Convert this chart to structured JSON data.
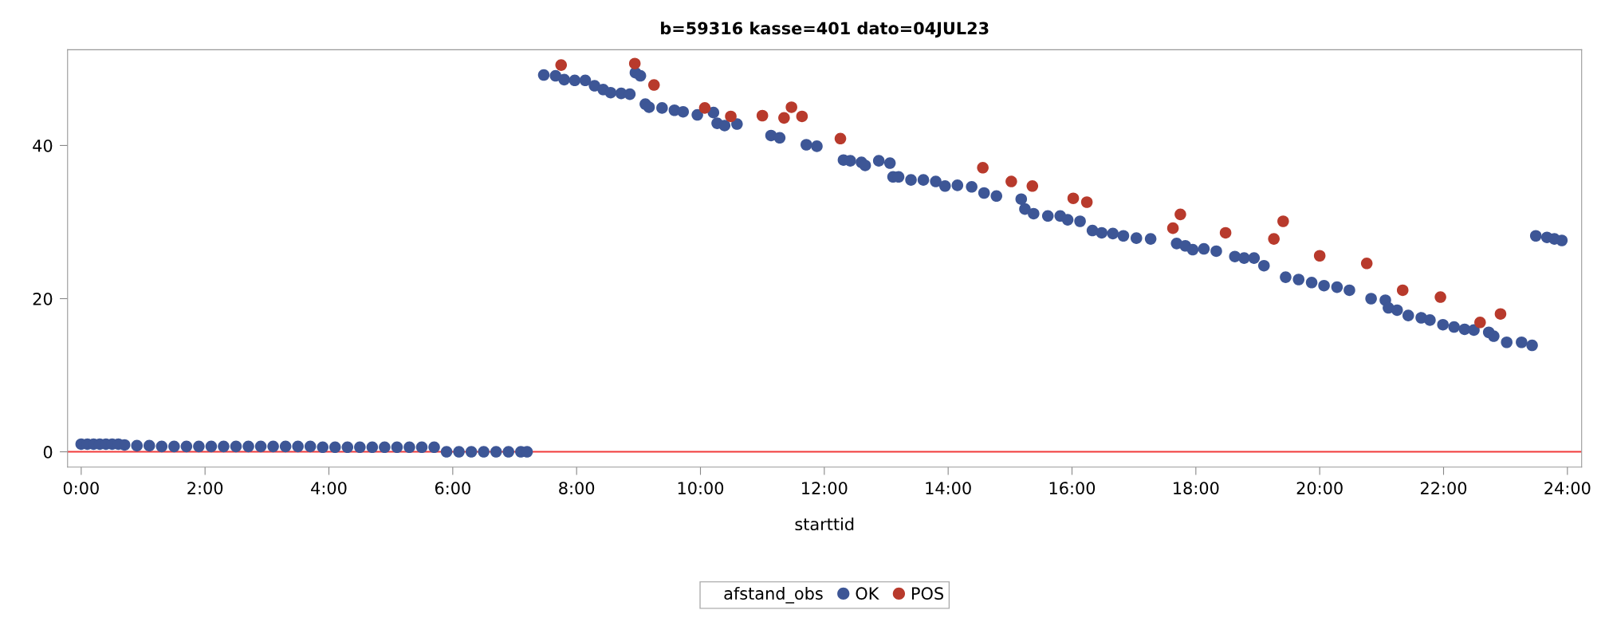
{
  "chart_data": {
    "type": "scatter",
    "title": "b=59316 kasse=401 dato=04JUL23",
    "xlabel": "starttid",
    "legend_title": "afstand_obs",
    "legend": "bottom",
    "grid": false,
    "marker": "circle",
    "xlim": [
      -0.22,
      24.23
    ],
    "ylim": [
      -2,
      52.5
    ],
    "xticks": [
      {
        "value": 0,
        "label": "0:00"
      },
      {
        "value": 2,
        "label": "2:00"
      },
      {
        "value": 4,
        "label": "4:00"
      },
      {
        "value": 6,
        "label": "6:00"
      },
      {
        "value": 8,
        "label": "8:00"
      },
      {
        "value": 10,
        "label": "10:00"
      },
      {
        "value": 12,
        "label": "12:00"
      },
      {
        "value": 14,
        "label": "14:00"
      },
      {
        "value": 16,
        "label": "16:00"
      },
      {
        "value": 18,
        "label": "18:00"
      },
      {
        "value": 20,
        "label": "20:00"
      },
      {
        "value": 22,
        "label": "22:00"
      },
      {
        "value": 24,
        "label": "24:00"
      }
    ],
    "yticks": [
      0,
      20,
      40
    ],
    "ref_lines": [
      {
        "axis": "y",
        "value": 0,
        "label": null,
        "color": "#f23a3a"
      }
    ],
    "series": [
      {
        "name": "OK",
        "color": "#3d5696",
        "x": [
          0.0,
          0.1,
          0.2,
          0.3,
          0.4,
          0.5,
          0.6,
          0.7,
          0.9,
          1.1,
          1.3,
          1.5,
          1.7,
          1.9,
          2.1,
          2.3,
          2.5,
          2.7,
          2.9,
          3.1,
          3.3,
          3.5,
          3.7,
          3.9,
          4.1,
          4.3,
          4.5,
          4.7,
          4.9,
          5.1,
          5.3,
          5.5,
          5.7,
          5.9,
          6.1,
          6.3,
          6.5,
          6.7,
          6.9,
          7.1,
          7.2,
          7.47,
          7.66,
          7.8,
          7.97,
          8.14,
          8.29,
          8.43,
          8.55,
          8.72,
          8.86,
          8.95,
          9.03,
          9.11,
          9.17,
          9.38,
          9.58,
          9.72,
          9.95,
          10.21,
          10.27,
          10.39,
          10.59,
          11.14,
          11.28,
          11.71,
          11.88,
          12.31,
          12.42,
          12.6,
          12.66,
          12.88,
          13.06,
          13.11,
          13.2,
          13.4,
          13.6,
          13.8,
          13.95,
          14.15,
          14.38,
          14.58,
          14.78,
          15.18,
          15.24,
          15.38,
          15.61,
          15.81,
          15.93,
          16.13,
          16.33,
          16.48,
          16.66,
          16.83,
          17.04,
          17.27,
          17.69,
          17.83,
          17.95,
          18.13,
          18.33,
          18.63,
          18.78,
          18.94,
          19.1,
          19.45,
          19.66,
          19.87,
          20.07,
          20.28,
          20.48,
          20.83,
          21.06,
          21.11,
          21.25,
          21.43,
          21.64,
          21.78,
          21.99,
          22.17,
          22.34,
          22.49,
          22.73,
          22.81,
          23.02,
          23.26,
          23.43,
          23.49,
          23.67,
          23.79,
          23.91
        ],
        "values": [
          1.0,
          1.0,
          1.0,
          1.0,
          1.0,
          1.0,
          1.0,
          0.9,
          0.8,
          0.8,
          0.7,
          0.7,
          0.7,
          0.7,
          0.7,
          0.7,
          0.7,
          0.7,
          0.7,
          0.7,
          0.7,
          0.7,
          0.7,
          0.6,
          0.6,
          0.6,
          0.6,
          0.6,
          0.6,
          0.6,
          0.6,
          0.6,
          0.6,
          0.0,
          0.0,
          0.0,
          0.0,
          0.0,
          0.0,
          0.0,
          0.0,
          49.2,
          49.1,
          48.6,
          48.5,
          48.5,
          47.8,
          47.3,
          46.9,
          46.8,
          46.7,
          49.5,
          49.1,
          45.4,
          45.0,
          44.9,
          44.6,
          44.4,
          44.0,
          44.3,
          42.9,
          42.6,
          42.8,
          41.3,
          41.0,
          40.1,
          39.9,
          38.1,
          38.0,
          37.8,
          37.4,
          38.0,
          37.7,
          35.9,
          35.9,
          35.5,
          35.5,
          35.3,
          34.7,
          34.8,
          34.6,
          33.8,
          33.4,
          33.0,
          31.7,
          31.1,
          30.8,
          30.8,
          30.3,
          30.1,
          28.9,
          28.6,
          28.5,
          28.2,
          27.9,
          27.8,
          27.2,
          26.9,
          26.4,
          26.5,
          26.2,
          25.5,
          25.3,
          25.3,
          24.3,
          22.8,
          22.5,
          22.1,
          21.7,
          21.5,
          21.1,
          20.0,
          19.8,
          18.8,
          18.5,
          17.8,
          17.5,
          17.2,
          16.6,
          16.3,
          16.0,
          15.9,
          15.6,
          15.1,
          14.3,
          14.3,
          13.9,
          28.2,
          28.0,
          27.8,
          27.6
        ]
      },
      {
        "name": "POS",
        "color": "#b83a2c",
        "x": [
          7.75,
          8.94,
          9.25,
          10.07,
          10.49,
          11.0,
          11.35,
          11.47,
          11.64,
          12.26,
          14.56,
          15.02,
          15.36,
          16.02,
          16.24,
          17.63,
          17.75,
          18.48,
          19.26,
          19.41,
          20.0,
          20.76,
          21.34,
          21.95,
          22.59,
          22.92
        ],
        "values": [
          50.5,
          50.7,
          47.9,
          44.9,
          43.8,
          43.9,
          43.6,
          45.0,
          43.8,
          40.9,
          37.1,
          35.3,
          34.7,
          33.1,
          32.6,
          29.2,
          31.0,
          28.6,
          27.8,
          30.1,
          25.6,
          24.6,
          21.1,
          20.2,
          16.9,
          18.0
        ]
      }
    ]
  }
}
